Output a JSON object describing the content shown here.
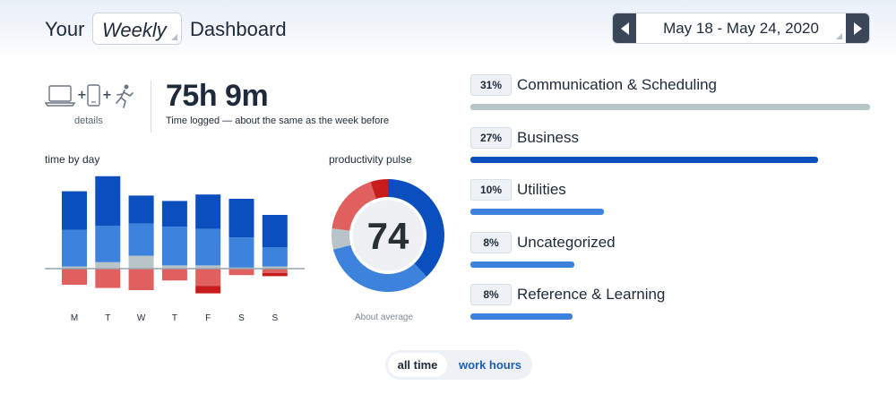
{
  "header": {
    "prefix": "Your",
    "period": "Weekly",
    "suffix": "Dashboard",
    "date_range": "May 18 - May 24, 2020"
  },
  "summary": {
    "devices_icons": [
      "laptop-icon",
      "phone-icon",
      "activity-icon"
    ],
    "details_label": "details",
    "time_logged": "75h 9m",
    "time_note": "Time logged — about the same as the week before"
  },
  "chart_data": [
    {
      "type": "bar",
      "title": "time by day",
      "categories": [
        "M",
        "T",
        "W",
        "T",
        "F",
        "S",
        "S"
      ],
      "series": [
        {
          "values": [
            3.6,
            4.6,
            2.6,
            2.4,
            3.2,
            3.6,
            3.0
          ]
        },
        {
          "values": [
            3.4,
            3.4,
            3.0,
            3.6,
            3.4,
            2.8,
            1.8
          ]
        },
        {
          "values": [
            0.2,
            0.6,
            1.2,
            0.3,
            0.3,
            0.1,
            0.2
          ]
        },
        {
          "values": [
            1.5,
            1.8,
            2.0,
            1.1,
            1.6,
            0.6,
            0.4
          ]
        },
        {
          "values": [
            0.0,
            0.0,
            0.0,
            0.0,
            0.7,
            0.0,
            0.3
          ]
        }
      ],
      "colors": [
        "#0b4fbf",
        "#3d82dc",
        "#b8c4c8",
        "#e06060",
        "#c81c1c"
      ]
    },
    {
      "type": "pie",
      "title": "productivity pulse",
      "center_value": "74",
      "subtitle": "About average",
      "values": [
        38,
        33,
        6,
        18,
        5
      ],
      "colors": [
        "#0b4fbf",
        "#3d82dc",
        "#b8c4c8",
        "#e06060",
        "#c81c1c"
      ]
    }
  ],
  "categories": [
    {
      "percent": "31%",
      "name": "Communication & Scheduling",
      "fraction": 1.0,
      "color": "#b8c6c8"
    },
    {
      "percent": "27%",
      "name": "Business",
      "fraction": 0.87,
      "color": "#0b4fbf"
    },
    {
      "percent": "10%",
      "name": "Utilities",
      "fraction": 0.335,
      "color": "#3d82dc"
    },
    {
      "percent": "8%",
      "name": "Uncategorized",
      "fraction": 0.26,
      "color": "#3d82dc"
    },
    {
      "percent": "8%",
      "name": "Reference & Learning",
      "fraction": 0.255,
      "color": "#3d82dc"
    }
  ],
  "toggle": {
    "all_time": "all time",
    "work_hours": "work hours"
  }
}
